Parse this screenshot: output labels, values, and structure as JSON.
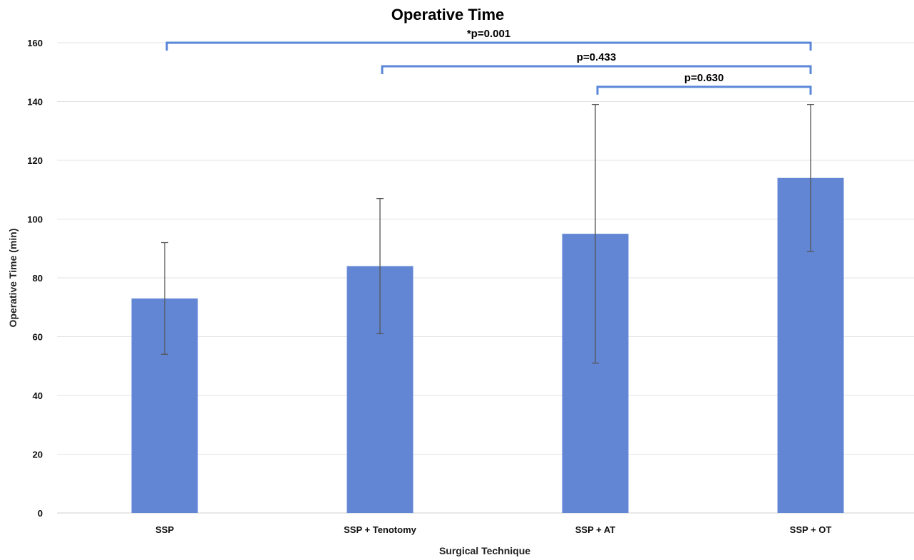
{
  "chart_data": {
    "type": "bar",
    "title": "Operative Time",
    "xlabel": "Surgical Technique",
    "ylabel": "Operative Time (min)",
    "ylim": [
      0,
      160
    ],
    "yticks": [
      0,
      20,
      40,
      60,
      80,
      100,
      120,
      140,
      160
    ],
    "grid": true,
    "categories": [
      "SSP",
      "SSP + Tenotomy",
      "SSP + AT",
      "SSP + OT"
    ],
    "values": [
      73,
      84,
      95,
      114
    ],
    "error_bars": [
      {
        "low": 54,
        "high": 92
      },
      {
        "low": 61,
        "high": 107
      },
      {
        "low": 51,
        "high": 139
      },
      {
        "low": 89,
        "high": 139
      }
    ],
    "bar_color": "#6286d4",
    "bracket_color": "#5b87d8",
    "comparisons": [
      {
        "from": "SSP",
        "to": "SSP + OT",
        "label": "*p=0.001",
        "level": 160
      },
      {
        "from": "SSP + Tenotomy",
        "to": "SSP + OT",
        "label": "p=0.433",
        "level": 152
      },
      {
        "from": "SSP + AT",
        "to": "SSP + OT",
        "label": "p=0.630",
        "level": 145
      }
    ]
  }
}
